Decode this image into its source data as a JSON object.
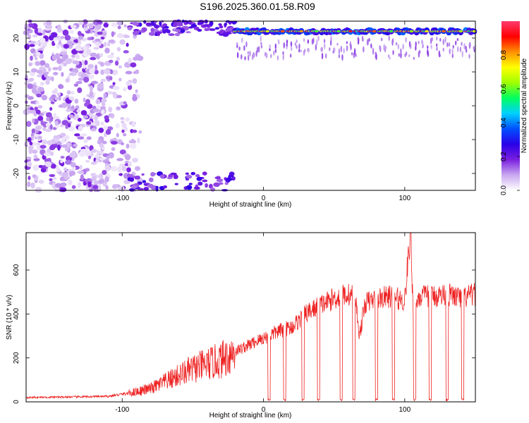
{
  "figure_title": "S196.2025.360.01.58.R09",
  "chart_data": [
    {
      "type": "heatmap",
      "title": "S196.2025.360.01.58.R09",
      "xlabel": "Height of straight line (km)",
      "ylabel": "Frequency (Hz)",
      "colorbar_label": "Normalized spectral amplitude",
      "xlim": [
        -168,
        150
      ],
      "ylim": [
        -25,
        25
      ],
      "xticks": [
        -100,
        0,
        100
      ],
      "yticks": [
        -20,
        -10,
        0,
        10,
        20
      ],
      "xtick_labels": [
        "-100",
        "0",
        "100"
      ],
      "ytick_labels": [
        "-20",
        "-10",
        "0",
        "10",
        "20"
      ],
      "colorbar_range": [
        0,
        1
      ],
      "colorbar_ticks": [
        0.0,
        0.2,
        0.4,
        0.6,
        0.8
      ],
      "colorbar_tick_labels": [
        "0.0",
        "0.2",
        "0.4",
        "0.6",
        "0.8"
      ],
      "colormap": [
        "#ffffff",
        "#c9a8f0",
        "#7a1fe0",
        "#2a00e8",
        "#0050ff",
        "#00d0ff",
        "#00ff60",
        "#a0ff00",
        "#ffff00",
        "#ff9000",
        "#ff0000",
        "#ff3a70"
      ],
      "signal_line_hz": 22,
      "signal_start_km": -20,
      "noise_extent_km": -95,
      "gap_km": [
        4,
        15,
        28,
        39,
        55,
        64,
        80,
        92,
        107,
        118,
        130,
        141
      ],
      "grid": false
    },
    {
      "type": "line",
      "title": "",
      "xlabel": "Height of straight line (km)",
      "ylabel": "SNR (10 * v/v)",
      "xlim": [
        -168,
        150
      ],
      "ylim": [
        0,
        770
      ],
      "xticks": [
        -100,
        0,
        100
      ],
      "yticks": [
        0,
        200,
        400,
        600
      ],
      "xtick_labels": [
        "-100",
        "0",
        "100"
      ],
      "ytick_labels": [
        "0",
        "200",
        "400",
        "600"
      ],
      "line_color": "#ee2222",
      "grid": false,
      "series": [
        {
          "x": [
            -168,
            -140,
            -110,
            -95,
            -80,
            -70,
            -60,
            -50,
            -40,
            -30,
            -20,
            -10,
            0,
            10,
            20,
            25,
            30,
            35,
            40,
            50,
            58,
            65,
            68,
            72,
            80,
            90,
            100,
            104,
            106,
            110,
            120,
            130,
            140,
            150
          ],
          "values": [
            20,
            22,
            25,
            40,
            60,
            90,
            120,
            150,
            170,
            190,
            230,
            260,
            290,
            320,
            340,
            370,
            400,
            420,
            440,
            470,
            490,
            480,
            300,
            450,
            470,
            480,
            460,
            770,
            420,
            480,
            480,
            490,
            470,
            490
          ]
        }
      ],
      "gap_km": [
        4,
        15,
        28,
        39,
        55,
        64,
        80,
        92,
        107,
        118,
        130,
        141
      ]
    }
  ]
}
